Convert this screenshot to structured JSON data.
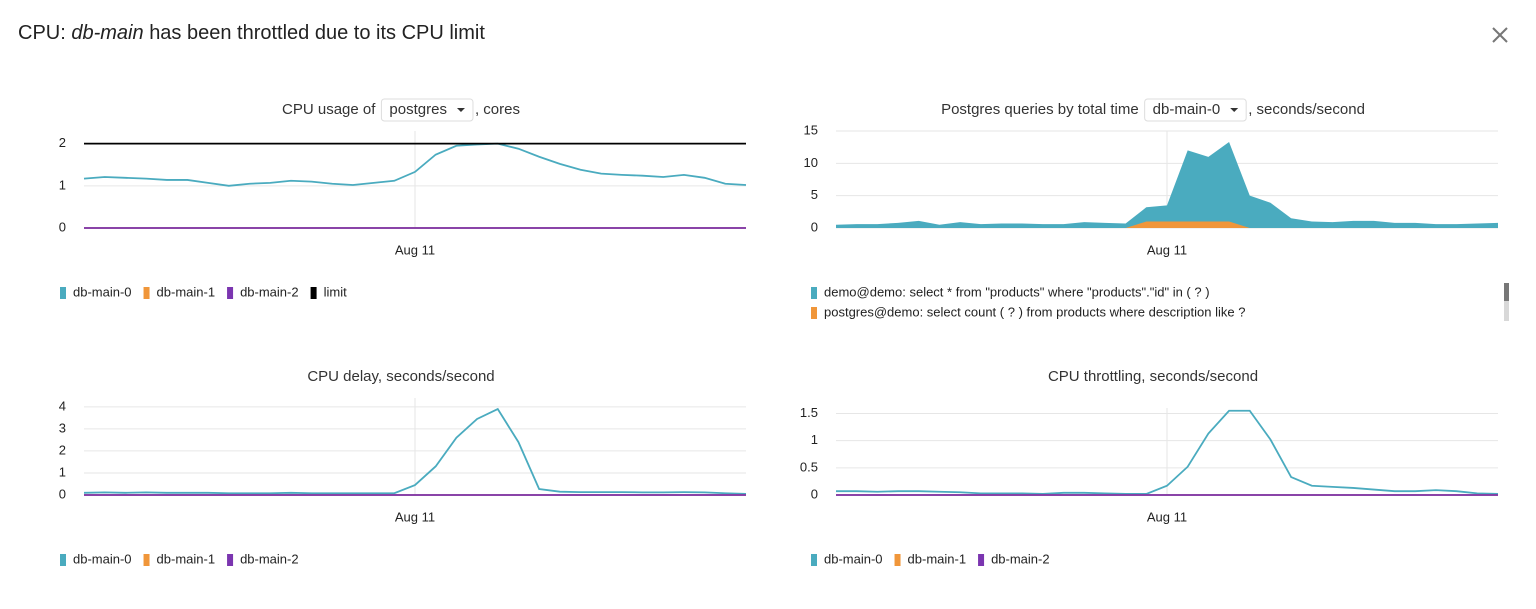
{
  "header": {
    "title_prefix": "CPU:",
    "title_em": "db-main",
    "title_suffix": "has been throttled due to its CPU limit"
  },
  "chart_data": [
    {
      "type": "line",
      "title": "CPU usage of",
      "selector": "postgres",
      "title_suffix": ", cores",
      "categories": [
        null,
        null,
        null,
        null,
        null,
        null,
        null,
        null,
        null,
        null,
        null,
        null,
        null,
        null,
        null,
        null,
        "Aug 11",
        null,
        null,
        null,
        null,
        null,
        null,
        null,
        null,
        null,
        null,
        null,
        null,
        null,
        null,
        null,
        null
      ],
      "series": [
        {
          "name": "db-main-0",
          "color": "#4aabbf",
          "values": [
            1.17,
            1.21,
            1.19,
            1.17,
            1.14,
            1.14,
            1.07,
            1.0,
            1.05,
            1.07,
            1.12,
            1.1,
            1.05,
            1.02,
            1.07,
            1.12,
            1.33,
            1.74,
            1.95,
            1.98,
            2.0,
            1.88,
            1.69,
            1.52,
            1.38,
            1.29,
            1.26,
            1.24,
            1.21,
            1.26,
            1.19,
            1.05,
            1.02
          ]
        },
        {
          "name": "db-main-1",
          "color": "#f0963a",
          "values": [
            0,
            0,
            0,
            0,
            0,
            0,
            0,
            0,
            0,
            0,
            0,
            0,
            0,
            0,
            0,
            0,
            0,
            0,
            0,
            0,
            0,
            0,
            0,
            0,
            0,
            0,
            0,
            0,
            0,
            0,
            0,
            0,
            0
          ]
        },
        {
          "name": "db-main-2",
          "color": "#7b35b0",
          "values": [
            0,
            0,
            0,
            0,
            0,
            0,
            0,
            0,
            0,
            0,
            0,
            0,
            0,
            0,
            0,
            0,
            0,
            0,
            0,
            0,
            0,
            0,
            0,
            0,
            0,
            0,
            0,
            0,
            0,
            0,
            0,
            0,
            0
          ]
        },
        {
          "name": "limit",
          "color": "#000000",
          "values": [
            2,
            2,
            2,
            2,
            2,
            2,
            2,
            2,
            2,
            2,
            2,
            2,
            2,
            2,
            2,
            2,
            2,
            2,
            2,
            2,
            2,
            2,
            2,
            2,
            2,
            2,
            2,
            2,
            2,
            2,
            2,
            2,
            2
          ]
        }
      ],
      "ylim": [
        0,
        2.3
      ],
      "yticks": [
        0,
        1,
        2
      ],
      "grid": true,
      "legend": "bottom"
    },
    {
      "type": "area",
      "title": "Postgres queries by total time",
      "selector": "db-main-0",
      "title_suffix": ", seconds/second",
      "categories": [
        null,
        null,
        null,
        null,
        null,
        null,
        null,
        null,
        null,
        null,
        null,
        null,
        null,
        null,
        null,
        null,
        "Aug 11",
        null,
        null,
        null,
        null,
        null,
        null,
        null,
        null,
        null,
        null,
        null,
        null,
        null,
        null,
        null,
        null
      ],
      "series": [
        {
          "name": "demo@demo: select * from \"products\" where \"products\".\"id\" in ( ? )",
          "color": "#4aabbf",
          "values": [
            0.5,
            0.6,
            0.6,
            0.8,
            1.1,
            0.5,
            0.9,
            0.6,
            0.7,
            0.7,
            0.6,
            0.6,
            0.9,
            0.8,
            0.7,
            3.2,
            3.5,
            12,
            11,
            13.3,
            5,
            3.9,
            1.5,
            1.0,
            0.9,
            1.1,
            1.1,
            0.8,
            0.8,
            0.6,
            0.6,
            0.7,
            0.8
          ]
        },
        {
          "name": "postgres@demo: select count ( ? ) from products where description like ?",
          "color": "#f0963a",
          "values": [
            0,
            0,
            0,
            0,
            0,
            0,
            0,
            0,
            0,
            0,
            0,
            0,
            0,
            0,
            0,
            1,
            1,
            1,
            1,
            1,
            0,
            0,
            0,
            0,
            0,
            0,
            0,
            0,
            0,
            0,
            0,
            0,
            0
          ]
        }
      ],
      "ylim": [
        0,
        15
      ],
      "yticks": [
        0,
        5,
        10,
        15
      ],
      "grid": true,
      "legend": "bottom"
    },
    {
      "type": "line",
      "title": "CPU delay, seconds/second",
      "categories": [
        null,
        null,
        null,
        null,
        null,
        null,
        null,
        null,
        null,
        null,
        null,
        null,
        null,
        null,
        null,
        null,
        "Aug 11",
        null,
        null,
        null,
        null,
        null,
        null,
        null,
        null,
        null,
        null,
        null,
        null,
        null,
        null,
        null,
        null
      ],
      "series": [
        {
          "name": "db-main-0",
          "color": "#4aabbf",
          "values": [
            0.1,
            0.12,
            0.1,
            0.12,
            0.1,
            0.1,
            0.1,
            0.08,
            0.08,
            0.08,
            0.1,
            0.08,
            0.08,
            0.08,
            0.08,
            0.08,
            0.45,
            1.3,
            2.6,
            3.45,
            3.9,
            2.4,
            0.27,
            0.15,
            0.13,
            0.13,
            0.13,
            0.12,
            0.12,
            0.13,
            0.12,
            0.08,
            0.05
          ]
        },
        {
          "name": "db-main-1",
          "color": "#f0963a",
          "values": [
            0,
            0,
            0,
            0,
            0,
            0,
            0,
            0,
            0,
            0,
            0,
            0,
            0,
            0,
            0,
            0,
            0,
            0,
            0,
            0,
            0,
            0,
            0,
            0,
            0,
            0,
            0,
            0,
            0,
            0,
            0,
            0,
            0
          ]
        },
        {
          "name": "db-main-2",
          "color": "#7b35b0",
          "values": [
            0,
            0,
            0,
            0,
            0,
            0,
            0,
            0,
            0,
            0,
            0,
            0,
            0,
            0,
            0,
            0,
            0,
            0,
            0,
            0,
            0,
            0,
            0,
            0,
            0,
            0,
            0,
            0,
            0,
            0,
            0,
            0,
            0
          ]
        }
      ],
      "ylim": [
        0,
        4.4
      ],
      "yticks": [
        0,
        1,
        2,
        3,
        4
      ],
      "grid": true,
      "legend": "bottom"
    },
    {
      "type": "line",
      "title": "CPU throttling, seconds/second",
      "categories": [
        null,
        null,
        null,
        null,
        null,
        null,
        null,
        null,
        null,
        null,
        null,
        null,
        null,
        null,
        null,
        null,
        "Aug 11",
        null,
        null,
        null,
        null,
        null,
        null,
        null,
        null,
        null,
        null,
        null,
        null,
        null,
        null,
        null,
        null
      ],
      "series": [
        {
          "name": "db-main-0",
          "color": "#4aabbf",
          "values": [
            0.07,
            0.07,
            0.06,
            0.07,
            0.07,
            0.06,
            0.05,
            0.03,
            0.03,
            0.03,
            0.02,
            0.04,
            0.04,
            0.03,
            0.02,
            0.02,
            0.17,
            0.52,
            1.13,
            1.55,
            1.55,
            1.02,
            0.33,
            0.17,
            0.15,
            0.13,
            0.1,
            0.07,
            0.07,
            0.09,
            0.07,
            0.03,
            0.02
          ]
        },
        {
          "name": "db-main-1",
          "color": "#f0963a",
          "values": [
            0,
            0,
            0,
            0,
            0,
            0,
            0,
            0,
            0,
            0,
            0,
            0,
            0,
            0,
            0,
            0,
            0,
            0,
            0,
            0,
            0,
            0,
            0,
            0,
            0,
            0,
            0,
            0,
            0,
            0,
            0,
            0,
            0
          ]
        },
        {
          "name": "db-main-2",
          "color": "#7b35b0",
          "values": [
            0,
            0,
            0,
            0,
            0,
            0,
            0,
            0,
            0,
            0,
            0,
            0,
            0,
            0,
            0,
            0,
            0,
            0,
            0,
            0,
            0,
            0,
            0,
            0,
            0,
            0,
            0,
            0,
            0,
            0,
            0,
            0,
            0
          ]
        }
      ],
      "ylim": [
        0,
        1.6
      ],
      "yticks": [
        0,
        0.5,
        1,
        1.5
      ],
      "grid": true,
      "legend": "bottom"
    }
  ]
}
